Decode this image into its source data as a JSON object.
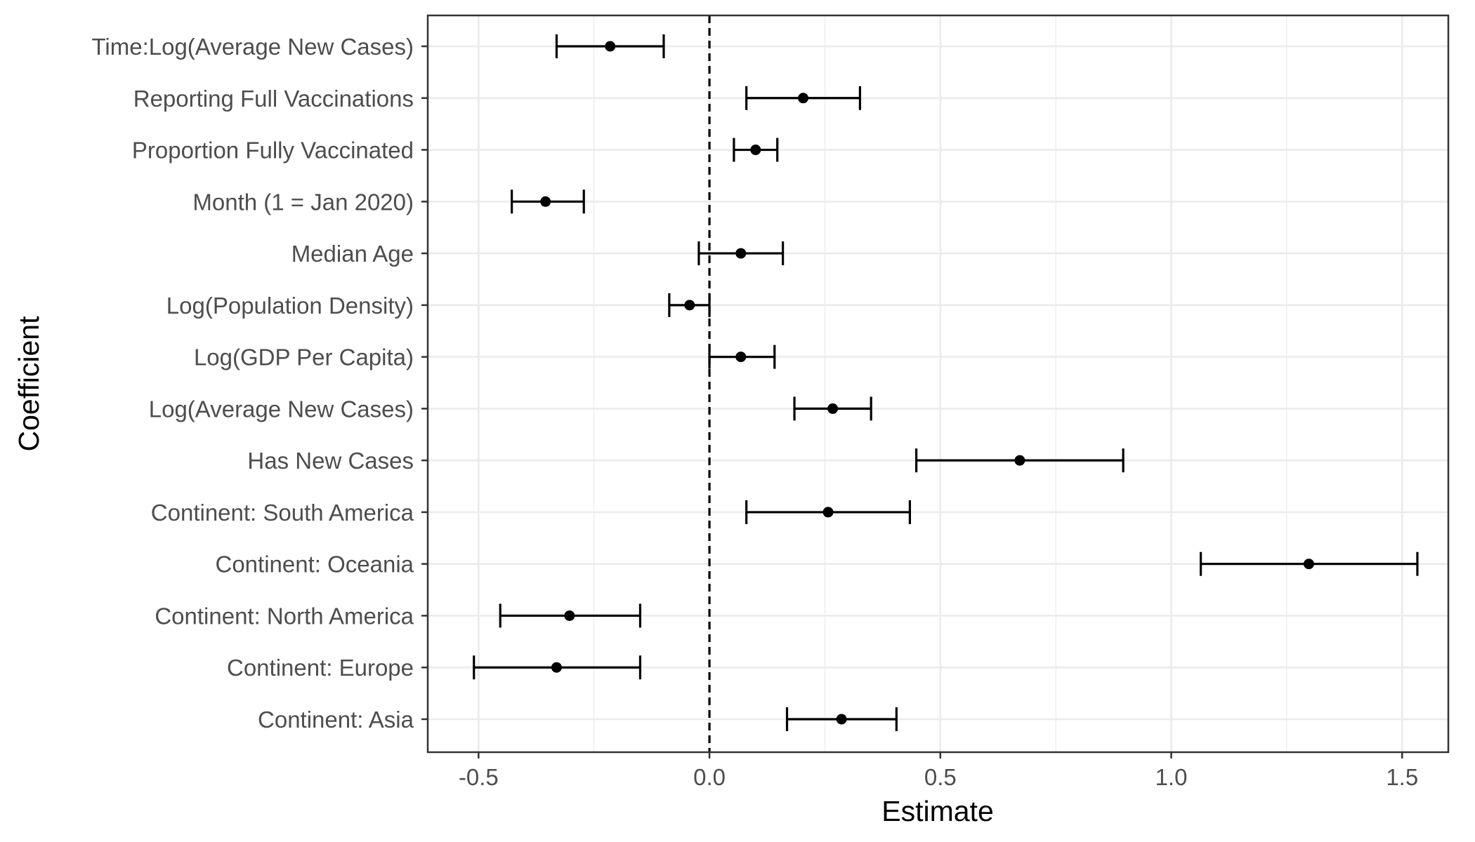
{
  "chart_data": {
    "type": "scatter",
    "style": "coefficient-plot-with-error-bars",
    "xlabel": "Estimate",
    "ylabel": "Coefficient",
    "xlim": [
      -0.61,
      1.6
    ],
    "x_ticks": [
      -0.5,
      0.0,
      0.5,
      1.0,
      1.5
    ],
    "x_tick_labels": [
      "-0.5",
      "0.0",
      "0.5",
      "1.0",
      "1.5"
    ],
    "reference_line": {
      "x": 0,
      "style": "dashed"
    },
    "grid": true,
    "colors": {
      "marks": "#000000",
      "grid": "#ebebeb",
      "panel_border": "#333333",
      "tick_label": "#4d4d4d"
    },
    "categories": [
      "Time:Log(Average New Cases)",
      "Reporting Full Vaccinations",
      "Proportion Fully Vaccinated",
      "Month (1 = Jan 2020)",
      "Median Age",
      "Log(Population Density)",
      "Log(GDP Per Capita)",
      "Log(Average New Cases)",
      "Has New Cases",
      "Continent: South America",
      "Continent: Oceania",
      "Continent: North America",
      "Continent: Europe",
      "Continent: Asia"
    ],
    "estimates": [
      -0.215,
      0.203,
      0.1,
      -0.355,
      0.068,
      -0.043,
      0.068,
      0.267,
      0.672,
      0.257,
      1.298,
      -0.303,
      -0.331,
      0.286
    ],
    "lower": [
      -0.331,
      0.08,
      0.053,
      -0.428,
      -0.023,
      -0.087,
      0.0,
      0.184,
      0.448,
      0.08,
      1.064,
      -0.453,
      -0.51,
      0.168
    ],
    "upper": [
      -0.099,
      0.326,
      0.147,
      -0.272,
      0.159,
      0.0,
      0.141,
      0.35,
      0.896,
      0.434,
      1.533,
      -0.15,
      -0.15,
      0.405
    ]
  }
}
